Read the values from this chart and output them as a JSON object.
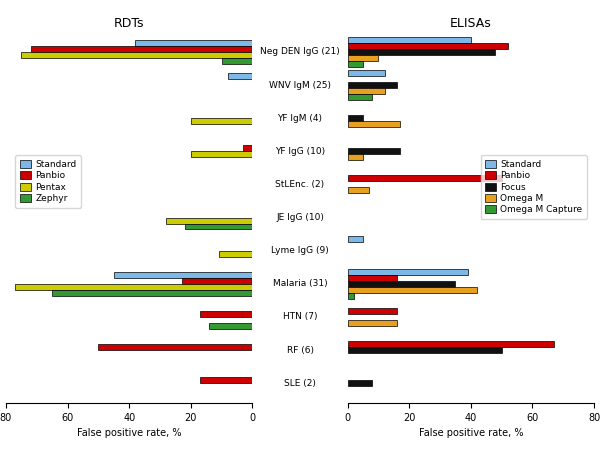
{
  "categories": [
    "Neg DEN IgG (21)",
    "WNV IgM (25)",
    "YF IgM (4)",
    "YF IgG (10)",
    "StLEnc. (2)",
    "JE IgG (10)",
    "Lyme IgG (9)",
    "Malaria (31)",
    "HTN (7)",
    "RF (6)",
    "SLE (2)"
  ],
  "rdt": {
    "Standard": [
      38,
      8,
      0,
      0,
      0,
      0,
      0,
      45,
      0,
      0,
      0
    ],
    "Panbio": [
      72,
      0,
      0,
      3,
      0,
      0,
      0,
      23,
      17,
      50,
      17
    ],
    "Pentax": [
      75,
      0,
      20,
      20,
      0,
      28,
      11,
      77,
      0,
      0,
      0
    ],
    "Zephyr": [
      10,
      0,
      0,
      0,
      0,
      22,
      0,
      65,
      14,
      0,
      0
    ]
  },
  "elisa": {
    "Standard": [
      40,
      12,
      0,
      0,
      0,
      0,
      5,
      39,
      0,
      0,
      0
    ],
    "Panbio": [
      52,
      0,
      0,
      0,
      50,
      0,
      0,
      16,
      16,
      67,
      0
    ],
    "Focus": [
      48,
      16,
      5,
      17,
      0,
      0,
      0,
      35,
      0,
      50,
      8
    ],
    "Omega M": [
      10,
      12,
      17,
      5,
      7,
      0,
      0,
      42,
      16,
      0,
      0
    ],
    "Omega M Capture": [
      5,
      8,
      0,
      0,
      0,
      0,
      0,
      2,
      0,
      0,
      0
    ]
  },
  "rdt_colors": {
    "Standard": "#7cb9e8",
    "Panbio": "#cc0000",
    "Pentax": "#cccc00",
    "Zephyr": "#339933"
  },
  "elisa_colors": {
    "Standard": "#7cb9e8",
    "Panbio": "#cc0000",
    "Focus": "#111111",
    "Omega M": "#e8a020",
    "Omega M Capture": "#339933"
  },
  "xlabel": "False positive rate, %",
  "title_rdt": "RDTs",
  "title_elisa": "ELISAs",
  "rdt_xticks": [
    80,
    60,
    40,
    20,
    0
  ],
  "elisa_xticks": [
    0,
    20,
    40,
    60,
    80
  ]
}
